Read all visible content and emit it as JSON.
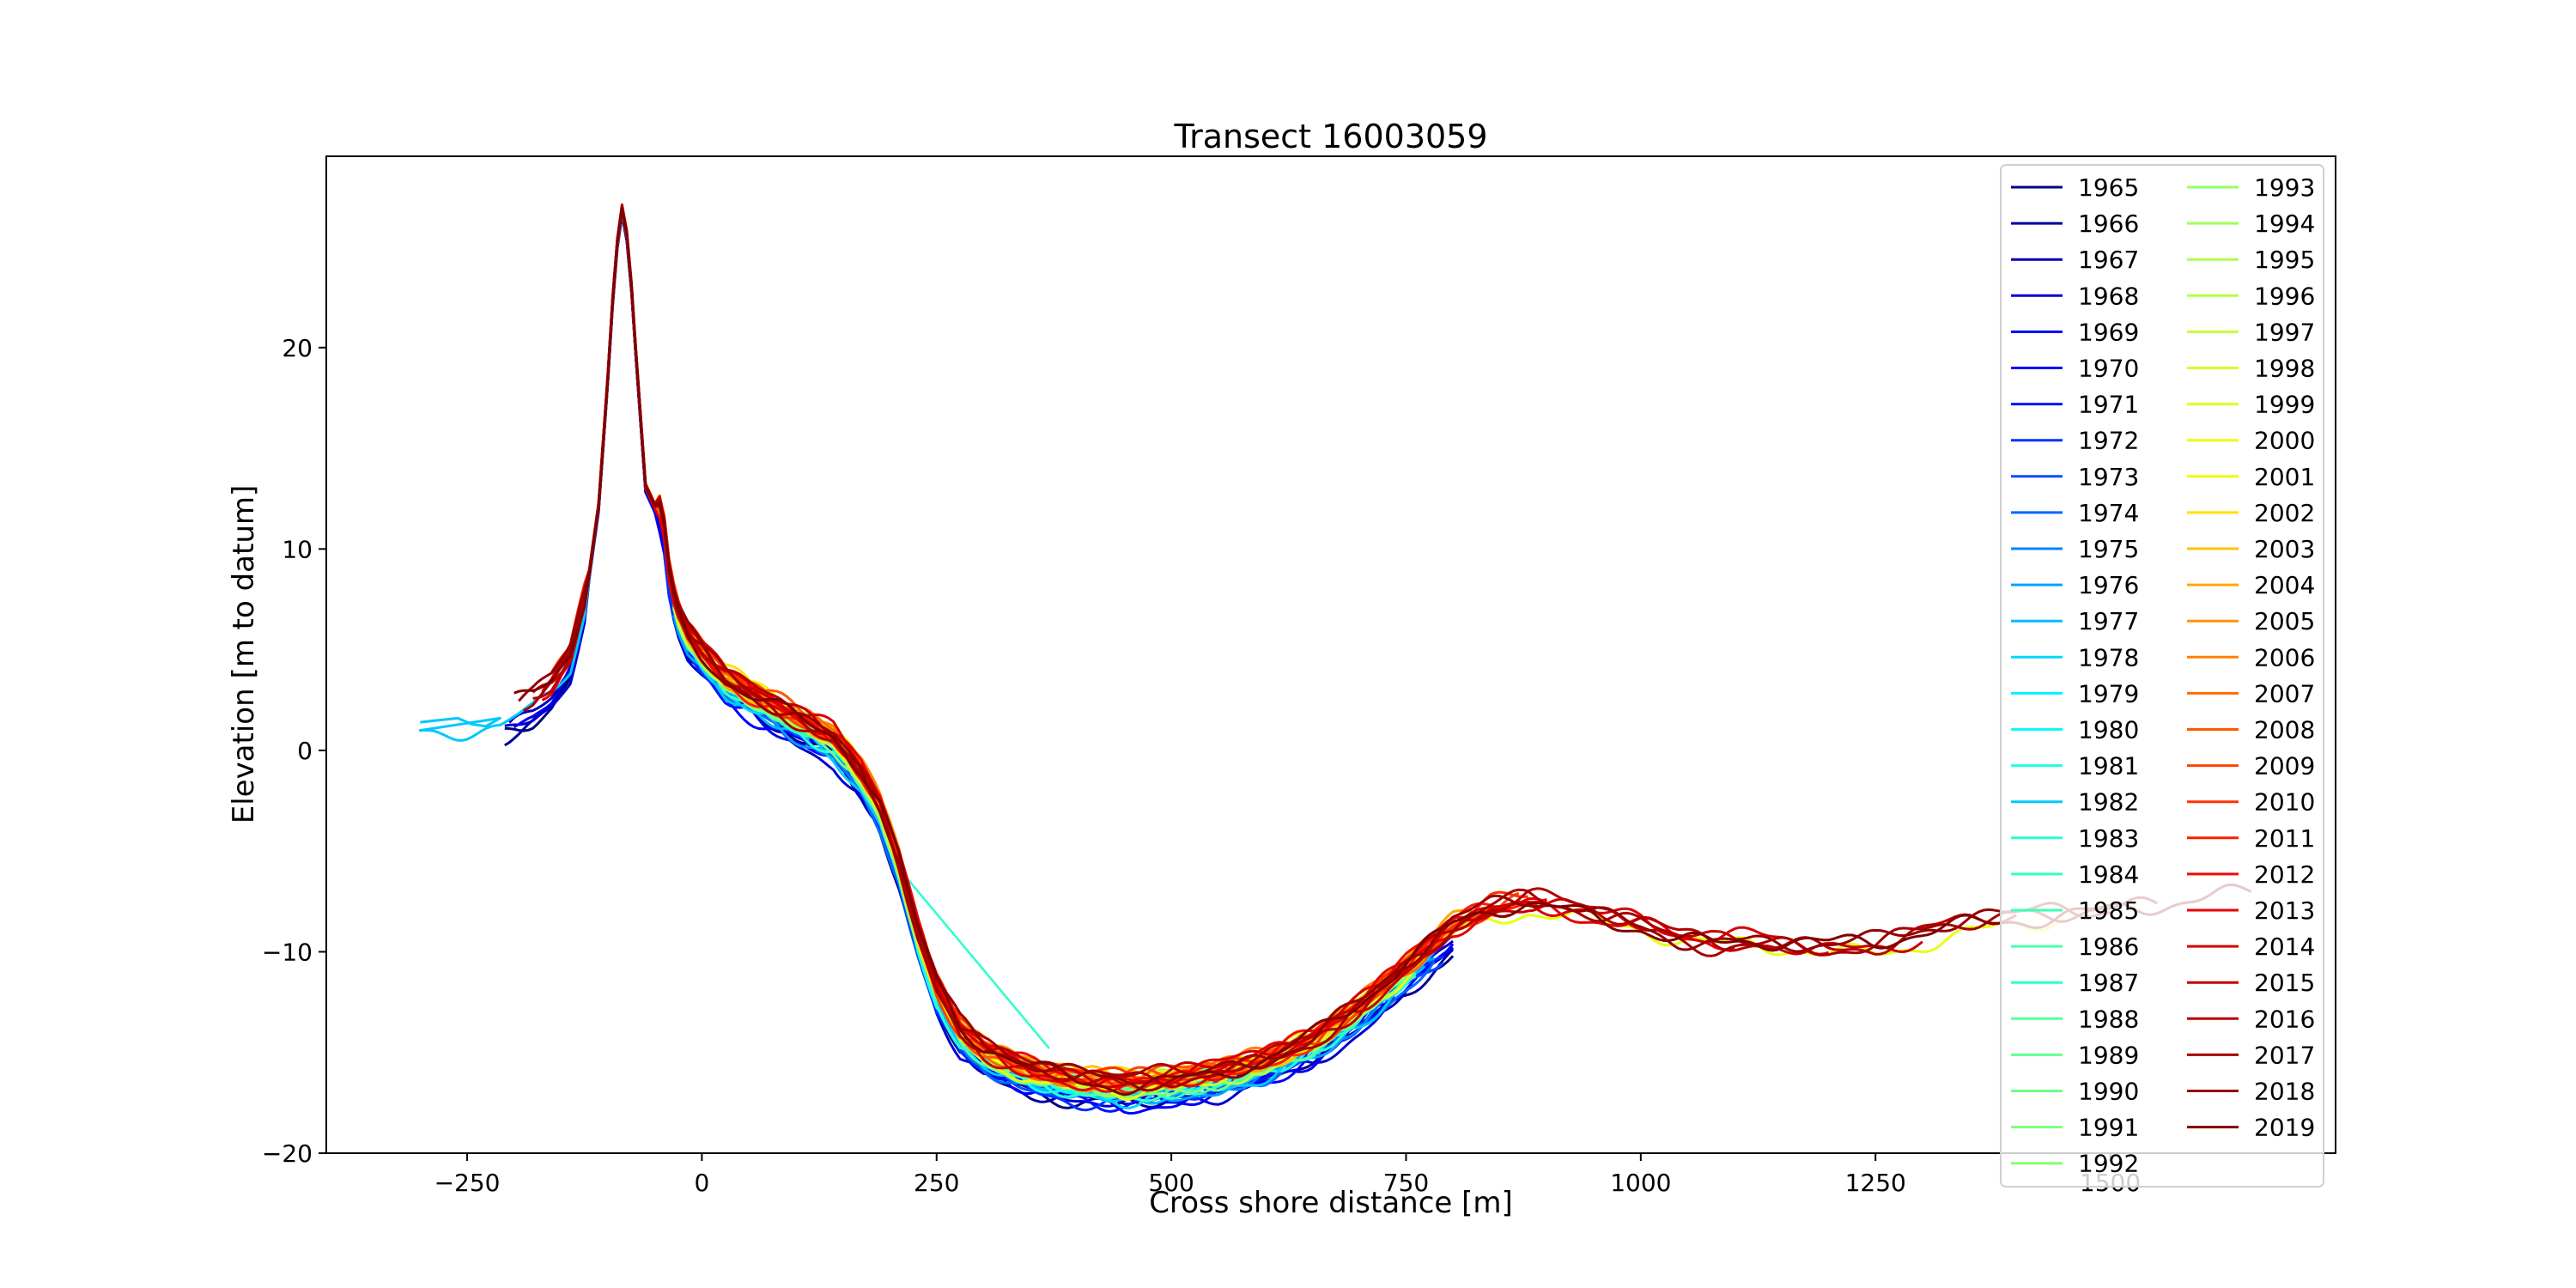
{
  "chart_data": {
    "type": "line",
    "title": "Transect 16003059",
    "xlabel": "Cross shore distance [m]",
    "ylabel": "Elevation [m to datum]",
    "xlim": [
      -400,
      1740
    ],
    "ylim": [
      -20,
      29.5
    ],
    "xticks": [
      -250,
      0,
      250,
      500,
      750,
      1000,
      1250,
      1500
    ],
    "yticks": [
      -20,
      -10,
      0,
      10,
      20
    ],
    "grid": false,
    "colormap": "jet",
    "legend": {
      "placement": "upper-right",
      "columns": 2
    },
    "base_profile": [
      [
        -215,
        1.3
      ],
      [
        -200,
        1.7
      ],
      [
        -180,
        2.1
      ],
      [
        -160,
        2.8
      ],
      [
        -140,
        4.2
      ],
      [
        -125,
        7.0
      ],
      [
        -110,
        12.0
      ],
      [
        -100,
        18.5
      ],
      [
        -92,
        24.5
      ],
      [
        -85,
        26.8
      ],
      [
        -78,
        25.0
      ],
      [
        -70,
        19.5
      ],
      [
        -60,
        13.0
      ],
      [
        -50,
        12.0
      ],
      [
        -42,
        11.5
      ],
      [
        -35,
        8.5
      ],
      [
        -28,
        6.8
      ],
      [
        -15,
        5.4
      ],
      [
        0,
        4.5
      ],
      [
        25,
        3.2
      ],
      [
        60,
        2.2
      ],
      [
        100,
        1.2
      ],
      [
        140,
        0.2
      ],
      [
        170,
        -1.5
      ],
      [
        190,
        -3.2
      ],
      [
        210,
        -6.0
      ],
      [
        230,
        -9.5
      ],
      [
        250,
        -12.2
      ],
      [
        275,
        -14.3
      ],
      [
        300,
        -15.3
      ],
      [
        350,
        -16.3
      ],
      [
        400,
        -16.8
      ],
      [
        450,
        -17.0
      ],
      [
        500,
        -16.8
      ],
      [
        550,
        -16.4
      ],
      [
        600,
        -15.8
      ],
      [
        650,
        -14.8
      ],
      [
        700,
        -13.2
      ],
      [
        750,
        -11.2
      ],
      [
        800,
        -9.3
      ],
      [
        840,
        -8.4
      ],
      [
        880,
        -8.0
      ],
      [
        920,
        -8.3
      ],
      [
        960,
        -8.8
      ],
      [
        1000,
        -9.1
      ],
      [
        1040,
        -9.8
      ],
      [
        1080,
        -10.1
      ],
      [
        1120,
        -10.0
      ],
      [
        1160,
        -10.1
      ],
      [
        1200,
        -10.3
      ],
      [
        1250,
        -10.2
      ],
      [
        1300,
        -9.6
      ],
      [
        1350,
        -9.1
      ],
      [
        1400,
        -8.8
      ],
      [
        1450,
        -8.5
      ],
      [
        1500,
        -8.3
      ],
      [
        1550,
        -8.1
      ],
      [
        1600,
        -7.9
      ],
      [
        1650,
        -7.7
      ]
    ],
    "series": [
      {
        "name": "1965",
        "color": "#000080",
        "x_range": [
          -210,
          800
        ],
        "offset": -0.4
      },
      {
        "name": "1966",
        "color": "#00009b",
        "x_range": [
          -210,
          800
        ],
        "offset": -0.5
      },
      {
        "name": "1967",
        "color": "#0000b6",
        "x_range": [
          -205,
          800
        ],
        "offset": -0.3
      },
      {
        "name": "1968",
        "color": "#0000d1",
        "x_range": [
          -210,
          800
        ],
        "offset": -0.6
      },
      {
        "name": "1969",
        "color": "#0000ed",
        "x_range": [
          -200,
          800
        ],
        "offset": -0.4
      },
      {
        "name": "1970",
        "color": "#0000ff",
        "x_range": [
          -40,
          800
        ],
        "offset": -0.5
      },
      {
        "name": "1971",
        "color": "#0014ff",
        "x_range": [
          -40,
          800
        ],
        "offset": -0.3
      },
      {
        "name": "1972",
        "color": "#0030ff",
        "x_range": [
          -40,
          790
        ],
        "offset": -0.4
      },
      {
        "name": "1973",
        "color": "#004cff",
        "x_range": [
          -40,
          790
        ],
        "offset": -0.2
      },
      {
        "name": "1974",
        "color": "#0068ff",
        "x_range": [
          -30,
          780
        ],
        "offset": -0.3
      },
      {
        "name": "1975",
        "color": "#0084ff",
        "x_range": [
          -30,
          780
        ],
        "offset": -0.1
      },
      {
        "name": "1976",
        "color": "#00a0ff",
        "x_range": [
          -30,
          780
        ],
        "offset": -0.2
      },
      {
        "name": "1977",
        "color": "#00bcff",
        "x_range": [
          -30,
          770
        ],
        "offset": 0.0
      },
      {
        "name": "1978",
        "color": "#00d8ff",
        "x_range": [
          -30,
          770
        ],
        "offset": -0.1
      },
      {
        "name": "1979",
        "color": "#00f4ff",
        "x_range": [
          -30,
          770
        ],
        "offset": 0.1
      },
      {
        "name": "1980",
        "color": "#0bfaf7",
        "x_range": [
          -30,
          760
        ],
        "offset": 0.0
      },
      {
        "name": "1981",
        "color": "#1cffe3",
        "x_range": [
          -30,
          760
        ],
        "offset": 0.1
      },
      {
        "name": "1982",
        "color": "#00c8fc",
        "x_range": [
          -300,
          790
        ],
        "offset": -0.2
      },
      {
        "name": "1983",
        "color": "#27ffd0",
        "x_range": [
          -30,
          760
        ],
        "offset": 0.1
      },
      {
        "name": "1984",
        "color": "#33ffc4",
        "x_range": [
          -30,
          760
        ],
        "offset": 0.2
      },
      {
        "name": "1985",
        "color": "#3fffb8",
        "x_range": [
          -30,
          760
        ],
        "offset": 0.1
      },
      {
        "name": "1986",
        "color": "#4bffac",
        "x_range": [
          -30,
          760
        ],
        "offset": 0.2
      },
      {
        "name": "1987",
        "color": "#2bffcc",
        "x_range": [
          -30,
          760
        ],
        "offset": 0.0
      },
      {
        "name": "1988",
        "color": "#57ffa0",
        "x_range": [
          -30,
          760
        ],
        "offset": 0.2
      },
      {
        "name": "1989",
        "color": "#63ff94",
        "x_range": [
          -30,
          760
        ],
        "offset": 0.3
      },
      {
        "name": "1990",
        "color": "#6fff88",
        "x_range": [
          -30,
          760
        ],
        "offset": 0.2
      },
      {
        "name": "1991",
        "color": "#7bff7c",
        "x_range": [
          -30,
          760
        ],
        "offset": 0.3
      },
      {
        "name": "1992",
        "color": "#87ff70",
        "x_range": [
          -30,
          760
        ],
        "offset": 0.2
      },
      {
        "name": "1993",
        "color": "#93ff64",
        "x_range": [
          -30,
          770
        ],
        "offset": 0.3
      },
      {
        "name": "1994",
        "color": "#9fff58",
        "x_range": [
          -30,
          770
        ],
        "offset": 0.4
      },
      {
        "name": "1995",
        "color": "#abff4c",
        "x_range": [
          -30,
          770
        ],
        "offset": 0.3
      },
      {
        "name": "1996",
        "color": "#b7ff40",
        "x_range": [
          -30,
          770
        ],
        "offset": 0.4
      },
      {
        "name": "1997",
        "color": "#c3ff34",
        "x_range": [
          -30,
          780
        ],
        "offset": 0.3
      },
      {
        "name": "1998",
        "color": "#cfff28",
        "x_range": [
          -30,
          780
        ],
        "offset": 0.4
      },
      {
        "name": "1999",
        "color": "#dbff1c",
        "x_range": [
          -30,
          780
        ],
        "offset": 0.5
      },
      {
        "name": "2000",
        "color": "#e7ff10",
        "x_range": [
          -30,
          1450
        ],
        "offset": 0.2
      },
      {
        "name": "2001",
        "color": "#f4f802",
        "x_range": [
          -30,
          800
        ],
        "offset": 0.5
      },
      {
        "name": "2002",
        "color": "#ffe200",
        "x_range": [
          -30,
          800
        ],
        "offset": 0.6
      },
      {
        "name": "2003",
        "color": "#ffc400",
        "x_range": [
          -120,
          810
        ],
        "offset": 0.5
      },
      {
        "name": "2004",
        "color": "#ffa700",
        "x_range": [
          -130,
          820
        ],
        "offset": 0.6
      },
      {
        "name": "2005",
        "color": "#ff9400",
        "x_range": [
          -130,
          830
        ],
        "offset": 0.5
      },
      {
        "name": "2006",
        "color": "#ff8000",
        "x_range": [
          -130,
          840
        ],
        "offset": 0.6
      },
      {
        "name": "2007",
        "color": "#ff6c00",
        "x_range": [
          -140,
          850
        ],
        "offset": 0.5
      },
      {
        "name": "2008",
        "color": "#ff5800",
        "x_range": [
          -140,
          860
        ],
        "offset": 0.6
      },
      {
        "name": "2009",
        "color": "#ff4400",
        "x_range": [
          -150,
          870
        ],
        "offset": 0.5
      },
      {
        "name": "2010",
        "color": "#ff3000",
        "x_range": [
          -150,
          880
        ],
        "offset": 0.6
      },
      {
        "name": "2011",
        "color": "#ff1c00",
        "x_range": [
          -160,
          890
        ],
        "offset": 0.5
      },
      {
        "name": "2012",
        "color": "#f20800",
        "x_range": [
          -160,
          900
        ],
        "offset": 0.6
      },
      {
        "name": "2013",
        "color": "#e60000",
        "x_range": [
          -170,
          1100
        ],
        "offset": 0.5
      },
      {
        "name": "2014",
        "color": "#d60000",
        "x_range": [
          -170,
          1200
        ],
        "offset": 0.6
      },
      {
        "name": "2015",
        "color": "#c60000",
        "x_range": [
          -180,
          1300
        ],
        "offset": 0.5
      },
      {
        "name": "2016",
        "color": "#b60000",
        "x_range": [
          -180,
          1400
        ],
        "offset": 0.6
      },
      {
        "name": "2017",
        "color": "#a60000",
        "x_range": [
          -190,
          1500
        ],
        "offset": 0.5
      },
      {
        "name": "2018",
        "color": "#960000",
        "x_range": [
          -195,
          1550
        ],
        "offset": 0.6
      },
      {
        "name": "2019",
        "color": "#800000",
        "x_range": [
          -200,
          1650
        ],
        "offset": 0.5
      }
    ]
  }
}
